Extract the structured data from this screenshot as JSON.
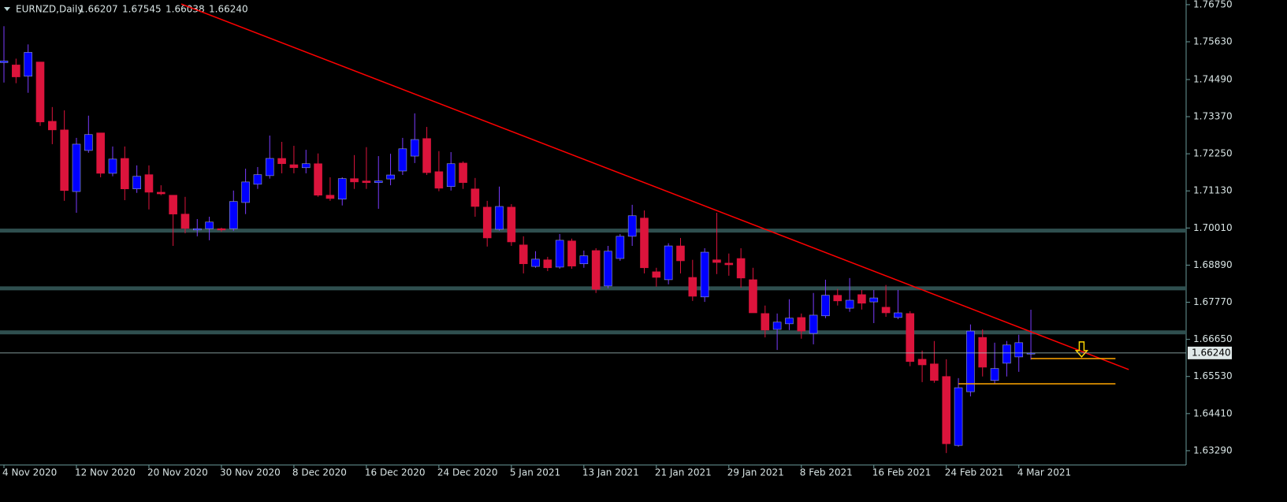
{
  "chart_data": {
    "type": "candlestick",
    "title": "EURNZD,Daily",
    "header_ohlc": [
      "1.66207",
      "1.67545",
      "1.66038",
      "1.66240"
    ],
    "categories": [
      "4 Nov 2020",
      null,
      null,
      null,
      null,
      null,
      "12 Nov 2020",
      null,
      null,
      null,
      null,
      null,
      "20 Nov 2020",
      null,
      null,
      null,
      null,
      null,
      "30 Nov 2020",
      null,
      null,
      null,
      null,
      null,
      "8 Dec 2020",
      null,
      null,
      null,
      null,
      null,
      "16 Dec 2020",
      null,
      null,
      null,
      null,
      null,
      "24 Dec 2020",
      null,
      null,
      null,
      null,
      null,
      "5 Jan 2021",
      null,
      null,
      null,
      null,
      null,
      "13 Jan 2021",
      null,
      null,
      null,
      null,
      null,
      "21 Jan 2021",
      null,
      null,
      null,
      null,
      null,
      "29 Jan 2021",
      null,
      null,
      null,
      null,
      null,
      "8 Feb 2021",
      null,
      null,
      null,
      null,
      null,
      "16 Feb 2021",
      null,
      null,
      null,
      null,
      null,
      "24 Feb 2021",
      null,
      null,
      null,
      null,
      null,
      "4 Mar 2021",
      null
    ],
    "open": [
      1.75,
      1.7493,
      1.7459,
      1.7502,
      1.7323,
      1.7297,
      1.7111,
      1.7235,
      1.7288,
      1.7166,
      1.7211,
      1.7119,
      1.7162,
      1.7109,
      1.71,
      1.7043,
      1.6995,
      1.6999,
      1.6999,
      1.6999,
      1.7078,
      1.7133,
      1.7159,
      1.7211,
      1.7192,
      1.7183,
      1.7195,
      1.71,
      1.7088,
      1.715,
      1.7143,
      1.7138,
      1.7149,
      1.7173,
      1.7218,
      1.7271,
      1.7171,
      1.7126,
      1.7197,
      1.7119,
      1.7064,
      1.6997,
      1.7064,
      1.695,
      1.6885,
      1.6905,
      1.6883,
      1.6962,
      1.6893,
      1.6933,
      1.6826,
      1.6909,
      1.6976,
      1.7031,
      1.6869,
      1.6845,
      1.6947,
      1.6852,
      1.6793,
      1.6905,
      1.6895,
      1.6909,
      1.6845,
      1.6743,
      1.6695,
      1.6712,
      1.6731,
      1.6683,
      1.6736,
      1.6798,
      1.6759,
      1.68,
      1.6778,
      1.6762,
      1.6731,
      1.6743,
      1.6605,
      1.6591,
      1.6553,
      1.6345,
      1.6507,
      1.6671,
      1.6541,
      1.6593,
      1.6612,
      1.66207
    ],
    "high": [
      1.761,
      1.7512,
      1.7555,
      1.7502,
      1.7366,
      1.7356,
      1.7273,
      1.734,
      1.7288,
      1.7247,
      1.7247,
      1.719,
      1.719,
      1.713,
      1.71,
      1.7095,
      1.7028,
      1.7035,
      1.7002,
      1.7114,
      1.718,
      1.7185,
      1.728,
      1.7261,
      1.7249,
      1.7237,
      1.7226,
      1.7154,
      1.7154,
      1.7221,
      1.7245,
      1.7218,
      1.7225,
      1.7273,
      1.7347,
      1.7306,
      1.7233,
      1.723,
      1.7202,
      1.7152,
      1.7083,
      1.7126,
      1.7073,
      1.6976,
      1.6931,
      1.6914,
      1.6983,
      1.6969,
      1.6933,
      1.694,
      1.6947,
      1.6983,
      1.7071,
      1.7054,
      1.6881,
      1.6955,
      1.6971,
      1.6905,
      1.694,
      1.7047,
      1.6924,
      1.694,
      1.6881,
      1.6767,
      1.6743,
      1.6786,
      1.6743,
      1.6805,
      1.6845,
      1.6817,
      1.685,
      1.6814,
      1.6814,
      1.6829,
      1.6814,
      1.675,
      1.6631,
      1.666,
      1.6605,
      1.6548,
      1.671,
      1.6695,
      1.6655,
      1.666,
      1.6679,
      1.67545
    ],
    "low": [
      1.744,
      1.7438,
      1.7409,
      1.7309,
      1.7254,
      1.7083,
      1.7047,
      1.7228,
      1.7154,
      1.7157,
      1.7085,
      1.7107,
      1.7057,
      1.71,
      1.6947,
      1.6985,
      1.6976,
      1.6964,
      1.699,
      1.6992,
      1.7043,
      1.7119,
      1.715,
      1.7166,
      1.7166,
      1.7166,
      1.7095,
      1.7083,
      1.7069,
      1.7119,
      1.7119,
      1.7059,
      1.713,
      1.7161,
      1.7197,
      1.7161,
      1.7112,
      1.7114,
      1.7119,
      1.7035,
      1.6945,
      1.6993,
      1.6947,
      1.6864,
      1.6881,
      1.6871,
      1.6878,
      1.6878,
      1.6881,
      1.6805,
      1.6819,
      1.6902,
      1.6947,
      1.6864,
      1.6824,
      1.6831,
      1.6864,
      1.6781,
      1.6778,
      1.6862,
      1.6857,
      1.6821,
      1.6745,
      1.6671,
      1.6633,
      1.6693,
      1.6667,
      1.665,
      1.6729,
      1.6767,
      1.6748,
      1.6755,
      1.6714,
      1.6733,
      1.6726,
      1.6584,
      1.6536,
      1.6534,
      1.6322,
      1.6341,
      1.6493,
      1.6553,
      1.6531,
      1.6553,
      1.6567,
      1.66038
    ],
    "close": [
      1.7505,
      1.7457,
      1.7531,
      1.7321,
      1.7297,
      1.7114,
      1.7254,
      1.7283,
      1.7166,
      1.7209,
      1.7119,
      1.7157,
      1.7109,
      1.7104,
      1.7043,
      1.7,
      1.6999,
      1.7019,
      1.6995,
      1.7081,
      1.714,
      1.7162,
      1.7211,
      1.7195,
      1.7183,
      1.7195,
      1.71,
      1.709,
      1.715,
      1.714,
      1.7138,
      1.7143,
      1.7161,
      1.724,
      1.7268,
      1.7168,
      1.7121,
      1.7195,
      1.7138,
      1.7066,
      1.6971,
      1.7066,
      1.6959,
      1.6893,
      1.6907,
      1.6881,
      1.6964,
      1.6886,
      1.6917,
      1.6816,
      1.6931,
      1.6976,
      1.7038,
      1.6881,
      1.6852,
      1.6947,
      1.6902,
      1.6795,
      1.6928,
      1.6897,
      1.689,
      1.685,
      1.6745,
      1.6693,
      1.6717,
      1.6729,
      1.669,
      1.6738,
      1.6798,
      1.6781,
      1.6783,
      1.6774,
      1.679,
      1.6745,
      1.6745,
      1.6598,
      1.6588,
      1.6541,
      1.635,
      1.6519,
      1.669,
      1.6581,
      1.6577,
      1.6648,
      1.6655,
      1.6624
    ],
    "up_color": "#0000ff",
    "down_color": "#dc143c",
    "ylim": [
      1.6286,
      1.7689
    ],
    "yticks": [
      {
        "value": 1.7675,
        "label": "1.76750"
      },
      {
        "value": 1.7563,
        "label": "1.75630"
      },
      {
        "value": 1.7449,
        "label": "1.74490"
      },
      {
        "value": 1.7337,
        "label": "1.73370"
      },
      {
        "value": 1.7225,
        "label": "1.72250"
      },
      {
        "value": 1.7113,
        "label": "1.71130"
      },
      {
        "value": 1.7001,
        "label": "1.70010"
      },
      {
        "value": 1.6889,
        "label": "1.68890"
      },
      {
        "value": 1.6777,
        "label": "1.67770"
      },
      {
        "value": 1.6665,
        "label": "1.66650"
      },
      {
        "value": 1.6553,
        "label": "1.65530"
      },
      {
        "value": 1.6441,
        "label": "1.64410"
      },
      {
        "value": 1.6329,
        "label": "1.63290"
      }
    ],
    "current_price": {
      "value": 1.6624,
      "label": "1.66240"
    },
    "levels": [
      1.6993,
      1.6819,
      1.6686
    ],
    "level_color": "#2f4f4f",
    "trendline": {
      "from": [
        14.68,
        1.7677
      ],
      "to": [
        93.1,
        1.6574
      ],
      "color": "#ff0000"
    },
    "support_lines": [
      {
        "y": 1.6607,
        "from": 85,
        "to": 92
      },
      {
        "y": 1.6531,
        "from": 79,
        "to": 92
      }
    ],
    "support_color": "#ffa500",
    "arrow": {
      "x": 89.2,
      "y": 1.6612,
      "color": "#ffd700"
    }
  }
}
